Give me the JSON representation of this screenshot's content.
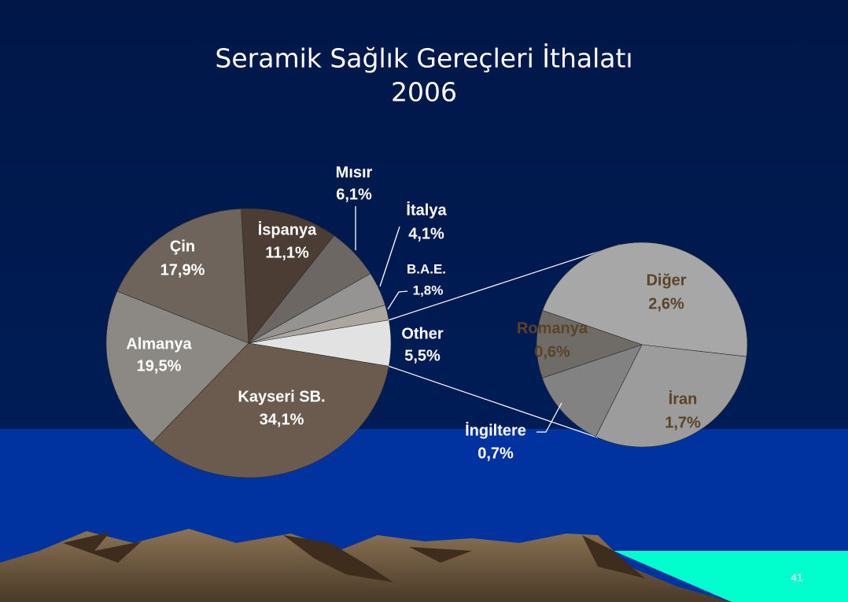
{
  "chart_data": {
    "type": "pie",
    "title": "Seramik Sağlık Gereçleri İthalatı",
    "subtitle": "2006",
    "categories": [
      "Other",
      "Kayseri SB.",
      "Almanya",
      "Çin",
      "İspanya",
      "Mısır",
      "İtalya",
      "B.A.E."
    ],
    "values": [
      5.5,
      34.1,
      19.5,
      17.9,
      11.1,
      6.1,
      4.1,
      1.8
    ],
    "value_labels": [
      "5,5%",
      "34,1%",
      "19,5%",
      "17,9%",
      "11,1%",
      "6,1%",
      "4,1%",
      "1,8%"
    ],
    "colors": [
      "#e2e2e2",
      "#6b5b4f",
      "#8c8883",
      "#6f645b",
      "#4b3d33",
      "#6c6762",
      "#959493",
      "#aca6a1"
    ],
    "secondary": {
      "categories": [
        "Diğer",
        "İran",
        "İngiltere",
        "Romanya"
      ],
      "values": [
        2.6,
        1.7,
        0.7,
        0.6
      ],
      "value_labels": [
        "2,6%",
        "1,7%",
        "0,7%",
        "0,6%"
      ],
      "colors": [
        "#a7a7a7",
        "#9c9c9c",
        "#828282",
        "#6f6b67"
      ]
    }
  },
  "page_number": "41"
}
